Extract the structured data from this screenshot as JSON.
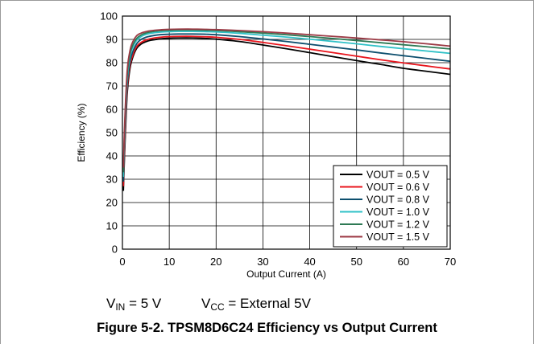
{
  "chart_data": {
    "type": "line",
    "title": "",
    "xlabel": "Output Current (A)",
    "ylabel": "Efficiency (%)",
    "xlim": [
      0,
      70
    ],
    "ylim": [
      0,
      100
    ],
    "xticks": [
      0,
      10,
      20,
      30,
      40,
      50,
      60,
      70
    ],
    "yticks": [
      0,
      10,
      20,
      30,
      40,
      50,
      60,
      70,
      80,
      90,
      100
    ],
    "grid": true,
    "legend_position": "bottom-right",
    "x": [
      0.2,
      0.5,
      1,
      1.5,
      2,
      3,
      4,
      5,
      6,
      8,
      10,
      12,
      15,
      18,
      20,
      25,
      30,
      35,
      40,
      45,
      50,
      55,
      60,
      65,
      70
    ],
    "series": [
      {
        "name": "VOUT = 0.5 V",
        "color": "#000000",
        "values": [
          25,
          43,
          66,
          76,
          81,
          86,
          88,
          89,
          89.6,
          90.2,
          90.5,
          90.6,
          90.6,
          90.4,
          90.1,
          89.1,
          87.6,
          86,
          84.3,
          82.6,
          80.9,
          79.3,
          77.6,
          76.3,
          75
        ]
      },
      {
        "name": "VOUT = 0.6 V",
        "color": "#e8141c",
        "values": [
          27,
          45,
          68,
          77.5,
          82,
          86.8,
          88.7,
          89.7,
          90.3,
          90.9,
          91.2,
          91.3,
          91.3,
          91.1,
          90.9,
          90,
          88.7,
          87.3,
          85.8,
          84.3,
          82.8,
          81.3,
          79.9,
          78.6,
          77.3
        ]
      },
      {
        "name": "VOUT = 0.8 V",
        "color": "#0d4f6e",
        "values": [
          29,
          48,
          70,
          79,
          83.5,
          88,
          90,
          90.9,
          91.4,
          92,
          92.2,
          92.3,
          92.3,
          92.2,
          92,
          91.2,
          90.2,
          89.1,
          87.9,
          86.7,
          85.5,
          84.2,
          83,
          81.8,
          80.6
        ]
      },
      {
        "name": "VOUT = 1.0 V",
        "color": "#2fc1c7",
        "values": [
          31,
          51,
          72,
          81,
          85.5,
          89.5,
          91.2,
          92.1,
          92.6,
          93.1,
          93.3,
          93.4,
          93.4,
          93.3,
          93.2,
          92.6,
          91.8,
          91,
          90.1,
          89.1,
          88.1,
          87,
          86,
          85,
          84
        ]
      },
      {
        "name": "VOUT = 1.2 V",
        "color": "#2e7a55",
        "values": [
          33,
          53,
          74,
          82.5,
          86.5,
          90.3,
          91.9,
          92.7,
          93.2,
          93.7,
          93.9,
          94,
          94,
          93.9,
          93.8,
          93.3,
          92.7,
          92,
          91.2,
          90.4,
          89.5,
          88.6,
          87.7,
          86.8,
          85.9
        ]
      },
      {
        "name": "VOUT = 1.5 V",
        "color": "#9c3a45",
        "values": [
          35,
          55,
          76,
          84,
          88,
          91.5,
          92.7,
          93.3,
          93.7,
          94.1,
          94.3,
          94.4,
          94.4,
          94.3,
          94.2,
          93.8,
          93.3,
          92.7,
          92,
          91.3,
          90.6,
          89.8,
          89,
          88.1,
          87.1
        ]
      }
    ]
  },
  "conditions": {
    "vin_v": "V",
    "vin_sub": "IN",
    "vin_rest": " = 5 V",
    "vcc_v": "V",
    "vcc_sub": "CC",
    "vcc_rest": " = External 5V"
  },
  "caption": "Figure 5-2. TPSM8D6C24 Efficiency vs Output Current"
}
